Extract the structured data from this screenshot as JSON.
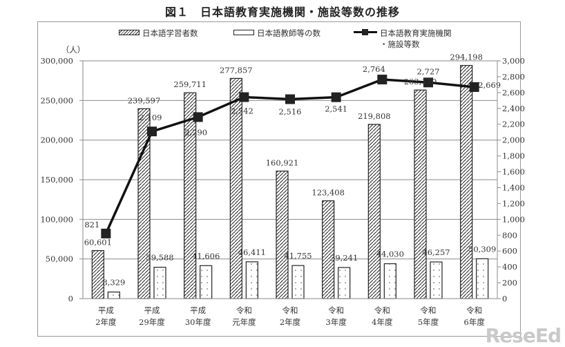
{
  "title": "図１　日本語教育実施機関・施設等数の推移",
  "legend": {
    "learners": "日本語学習者数",
    "teachers": "日本語教師等の数",
    "institutions_line1": "日本語教育実施機関",
    "institutions_line2": "・施設等数"
  },
  "left_axis_unit": "（人）",
  "watermark": "ReseEd",
  "chart_data": {
    "type": "bar+line",
    "title": "図１　日本語教育実施機関・施設等数の推移",
    "categories": [
      [
        "平成",
        "2年度"
      ],
      [
        "平成",
        "29年度"
      ],
      [
        "平成",
        "30年度"
      ],
      [
        "令和",
        "元年度"
      ],
      [
        "令和",
        "2年度"
      ],
      [
        "令和",
        "3年度"
      ],
      [
        "令和",
        "4年度"
      ],
      [
        "令和",
        "5年度"
      ],
      [
        "令和",
        "6年度"
      ]
    ],
    "series": [
      {
        "name": "日本語学習者数",
        "type": "bar",
        "axis": "left",
        "pattern": "hatch",
        "values": [
          60601,
          239597,
          259711,
          277857,
          160921,
          123408,
          219808,
          263170,
          294198
        ],
        "labels": [
          "60,601",
          "239,597",
          "259,711",
          "277,857",
          "160,921",
          "123,408",
          "219,808",
          "263,170",
          "294,198"
        ]
      },
      {
        "name": "日本語教師等の数",
        "type": "bar",
        "axis": "left",
        "pattern": "dots",
        "values": [
          8329,
          39588,
          41606,
          46411,
          41755,
          39241,
          44030,
          46257,
          50309
        ],
        "labels": [
          "8,329",
          "39,588",
          "41,606",
          "46,411",
          "41,755",
          "39,241",
          "44,030",
          "46,257",
          "50,309"
        ]
      },
      {
        "name": "日本語教育実施機関・施設等数",
        "type": "line",
        "axis": "right",
        "marker": "square",
        "values": [
          821,
          2109,
          2290,
          2542,
          2516,
          2541,
          2764,
          2727,
          2669
        ],
        "labels": [
          "821",
          "2,109",
          "2,290",
          "2,542",
          "2,516",
          "2,541",
          "2,764",
          "2,727",
          "2,669"
        ]
      }
    ],
    "left_axis": {
      "label": "（人）",
      "ylim": [
        0,
        300000
      ],
      "ticks": [
        "0",
        "50,000",
        "100,000",
        "150,000",
        "200,000",
        "250,000",
        "300,000"
      ]
    },
    "right_axis": {
      "ylim": [
        0,
        3000
      ],
      "ticks": [
        "0",
        "200",
        "400",
        "600",
        "800",
        "1,000",
        "1,200",
        "1,400",
        "1,600",
        "1,800",
        "2,000",
        "2,200",
        "2,400",
        "2,600",
        "2,800",
        "3,000"
      ]
    },
    "grid": true,
    "legend_position": "top"
  }
}
